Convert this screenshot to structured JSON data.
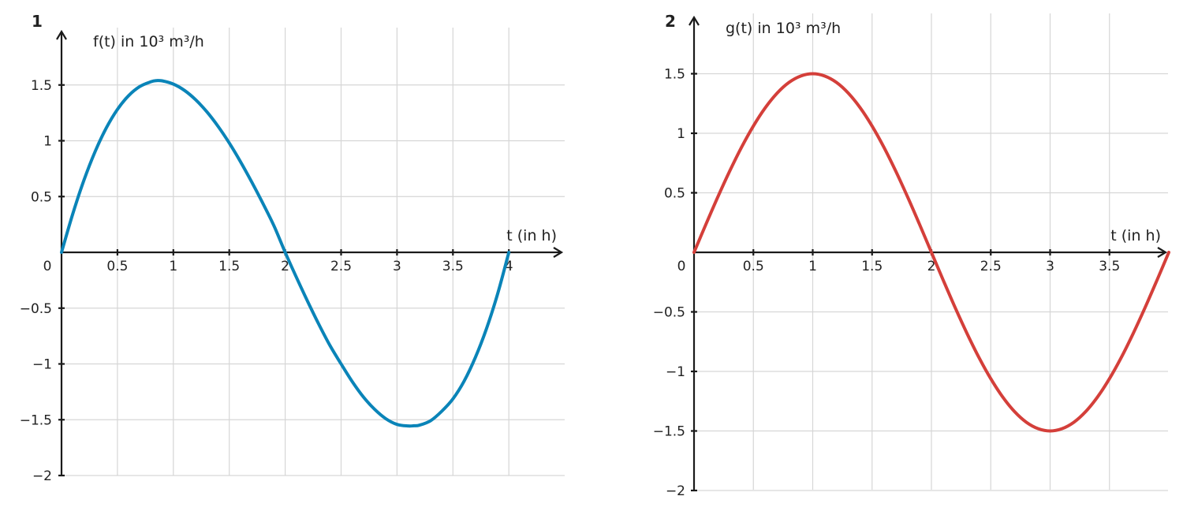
{
  "chart_data": [
    {
      "type": "line",
      "panel_label": "1",
      "ylabel": "f(t) in 10³ m³/h",
      "xlabel": "t (in h)",
      "xlim": [
        0,
        4.5
      ],
      "ylim": [
        -2,
        1.9
      ],
      "x_ticks": [
        {
          "value": 0.5,
          "label": "0.5"
        },
        {
          "value": 1,
          "label": "1"
        },
        {
          "value": 1.5,
          "label": "1.5"
        },
        {
          "value": 2,
          "label": "2"
        },
        {
          "value": 2.5,
          "label": "2.5"
        },
        {
          "value": 3,
          "label": "3"
        },
        {
          "value": 3.5,
          "label": "3.5"
        },
        {
          "value": 4,
          "label": "4"
        }
      ],
      "y_ticks": [
        {
          "value": 1.5,
          "label": "1.5"
        },
        {
          "value": 1,
          "label": "1"
        },
        {
          "value": 0.5,
          "label": "0.5"
        },
        {
          "value": -0.5,
          "label": "−0.5"
        },
        {
          "value": -1,
          "label": "−1"
        },
        {
          "value": -1.5,
          "label": "−1.5"
        },
        {
          "value": -2,
          "label": "−2"
        }
      ],
      "origin_label": "0",
      "grid": true,
      "series": [
        {
          "color": "#0a84b8",
          "x": [
            0,
            0.1,
            0.2,
            0.3,
            0.4,
            0.5,
            0.6,
            0.7,
            0.8,
            0.85,
            0.9,
            1.0,
            1.1,
            1.2,
            1.3,
            1.4,
            1.5,
            1.6,
            1.7,
            1.8,
            1.9,
            2.0,
            2.1,
            2.2,
            2.3,
            2.4,
            2.5,
            2.6,
            2.7,
            2.8,
            2.9,
            3.0,
            3.1,
            3.15,
            3.2,
            3.3,
            3.4,
            3.5,
            3.6,
            3.7,
            3.8,
            3.9,
            4.0
          ],
          "y": [
            0,
            0.343,
            0.645,
            0.902,
            1.114,
            1.281,
            1.404,
            1.486,
            1.529,
            1.539,
            1.537,
            1.508,
            1.451,
            1.367,
            1.259,
            1.129,
            0.98,
            0.813,
            0.632,
            0.44,
            0.237,
            0,
            -0.223,
            -0.438,
            -0.643,
            -0.834,
            -1.0,
            -1.159,
            -1.297,
            -1.407,
            -1.491,
            -1.542,
            -1.556,
            -1.554,
            -1.549,
            -1.509,
            -1.424,
            -1.313,
            -1.154,
            -0.943,
            -0.684,
            -0.371,
            0
          ]
        }
      ]
    },
    {
      "type": "line",
      "panel_label": "2",
      "ylabel": "g(t) in 10³ m³/h",
      "xlabel": "t (in h)",
      "xlim": [
        0,
        4.0
      ],
      "ylim": [
        -2,
        1.9
      ],
      "x_ticks": [
        {
          "value": 0.5,
          "label": "0.5"
        },
        {
          "value": 1,
          "label": "1"
        },
        {
          "value": 1.5,
          "label": "1.5"
        },
        {
          "value": 2,
          "label": "2"
        },
        {
          "value": 2.5,
          "label": "2.5"
        },
        {
          "value": 3,
          "label": "3"
        },
        {
          "value": 3.5,
          "label": "3.5"
        }
      ],
      "y_ticks": [
        {
          "value": 1.5,
          "label": "1.5"
        },
        {
          "value": 1,
          "label": "1"
        },
        {
          "value": 0.5,
          "label": "0.5"
        },
        {
          "value": -0.5,
          "label": "−0.5"
        },
        {
          "value": -1,
          "label": "−1"
        },
        {
          "value": -1.5,
          "label": "−1.5"
        },
        {
          "value": -2,
          "label": "−2"
        }
      ],
      "origin_label": "0",
      "grid": true,
      "series": [
        {
          "color": "#d43f3a",
          "x": [
            0,
            0.1,
            0.2,
            0.3,
            0.4,
            0.5,
            0.6,
            0.7,
            0.8,
            0.9,
            1.0,
            1.1,
            1.2,
            1.3,
            1.4,
            1.5,
            1.6,
            1.7,
            1.8,
            1.9,
            2.0,
            2.1,
            2.2,
            2.3,
            2.4,
            2.5,
            2.6,
            2.7,
            2.8,
            2.9,
            3.0,
            3.1,
            3.2,
            3.3,
            3.4,
            3.5,
            3.6,
            3.7,
            3.8,
            3.9,
            4.0
          ],
          "y": [
            0,
            0.235,
            0.464,
            0.681,
            0.882,
            1.061,
            1.214,
            1.337,
            1.427,
            1.481,
            1.5,
            1.481,
            1.427,
            1.337,
            1.214,
            1.061,
            0.882,
            0.681,
            0.464,
            0.235,
            0,
            -0.235,
            -0.464,
            -0.681,
            -0.882,
            -1.061,
            -1.214,
            -1.337,
            -1.427,
            -1.481,
            -1.5,
            -1.481,
            -1.427,
            -1.337,
            -1.214,
            -1.061,
            -0.882,
            -0.681,
            -0.464,
            -0.235,
            0
          ]
        }
      ]
    }
  ]
}
